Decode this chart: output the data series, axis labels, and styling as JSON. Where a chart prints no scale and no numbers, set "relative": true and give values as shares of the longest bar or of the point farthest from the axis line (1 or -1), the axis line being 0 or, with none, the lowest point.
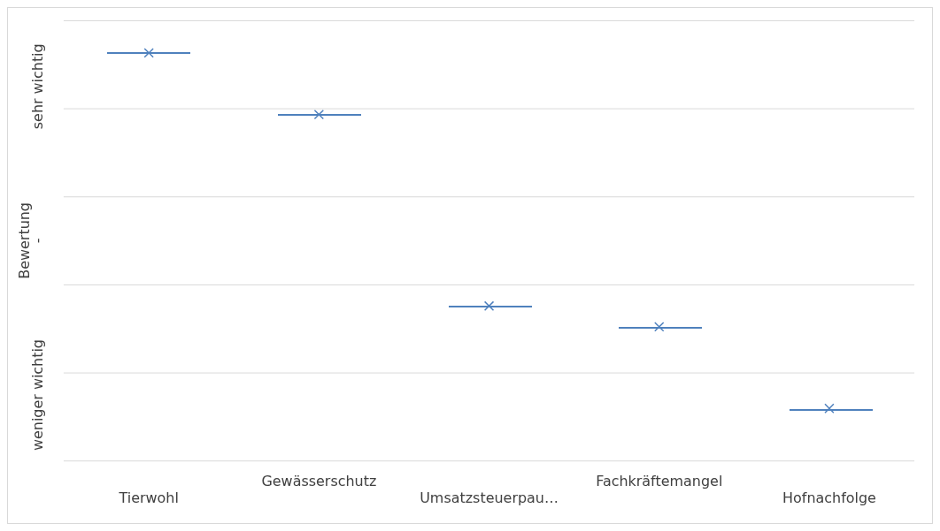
{
  "chart_data": {
    "type": "scatter",
    "relative": true,
    "ylabel": "Bewertung",
    "annotations": [
      "weniger wichtig",
      "-",
      "sehr wichtig"
    ],
    "categories": [
      "Tierwohl",
      "Gewässerschutz",
      "Umsatzsteuerpau…",
      "Fachkräftemangel",
      "Hofnachfolge"
    ],
    "series": [
      {
        "color": "#4f81bd",
        "values": [
          1,
          0.849,
          0.38,
          0.329,
          0.129
        ]
      }
    ],
    "marker": "cross",
    "grid": "y",
    "legend": false
  }
}
